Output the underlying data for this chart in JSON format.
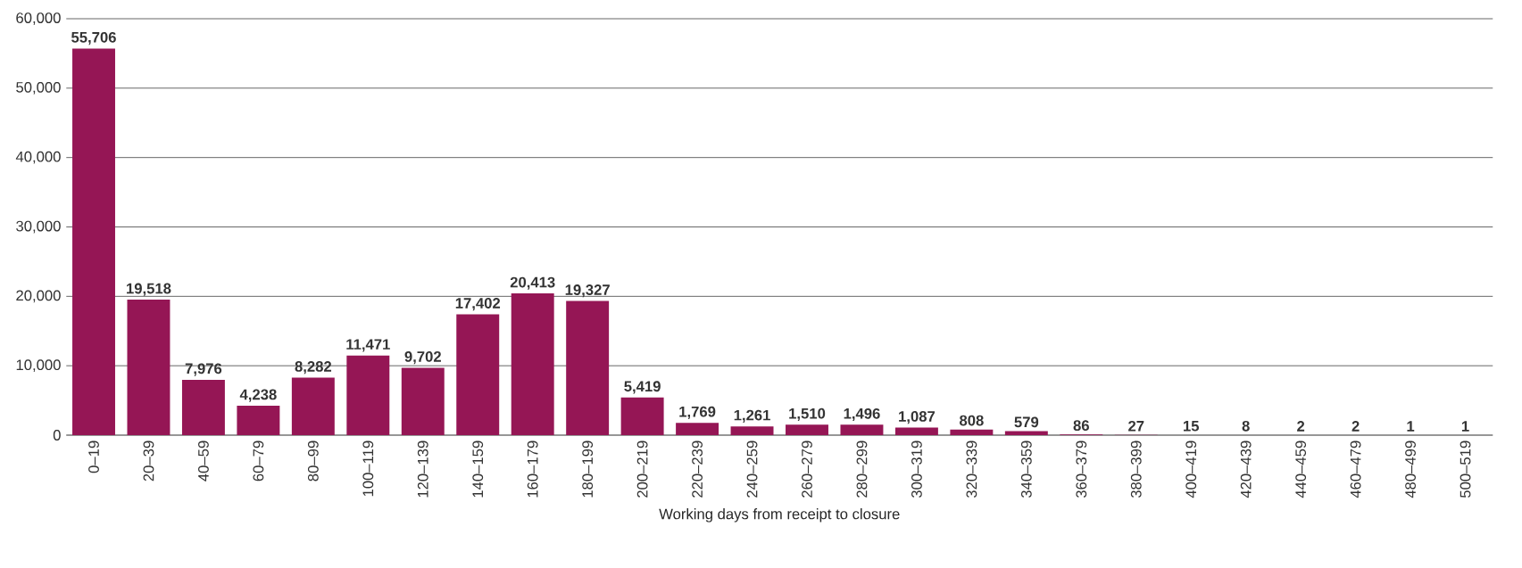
{
  "chart_data": {
    "type": "bar",
    "xlabel": "Working days from receipt to closure",
    "categories": [
      "0–19",
      "20–39",
      "40–59",
      "60–79",
      "80–99",
      "100–119",
      "120–139",
      "140–159",
      "160–179",
      "180–199",
      "200–219",
      "220–239",
      "240–259",
      "260–279",
      "280–299",
      "300–319",
      "320–339",
      "340–359",
      "360–379",
      "380–399",
      "400–419",
      "420–439",
      "440–459",
      "460–479",
      "480–499",
      "500–519"
    ],
    "values": [
      55706,
      19518,
      7976,
      4238,
      8282,
      11471,
      9702,
      17402,
      20413,
      19327,
      5419,
      1769,
      1261,
      1510,
      1496,
      1087,
      808,
      579,
      86,
      27,
      15,
      8,
      2,
      2,
      1,
      1
    ],
    "value_labels": [
      "55,706",
      "19,518",
      "7,976",
      "4,238",
      "8,282",
      "11,471",
      "9,702",
      "17,402",
      "20,413",
      "19,327",
      "5,419",
      "1,769",
      "1,261",
      "1,510",
      "1,496",
      "1,087",
      "808",
      "579",
      "86",
      "27",
      "15",
      "8",
      "2",
      "2",
      "1",
      "1"
    ],
    "color": "#951655",
    "ylim": [
      0,
      60000
    ],
    "yticks": [
      {
        "value": 0,
        "label": "0"
      },
      {
        "value": 10000,
        "label": "10,000"
      },
      {
        "value": 20000,
        "label": "20,000"
      },
      {
        "value": 30000,
        "label": "30,000"
      },
      {
        "value": 40000,
        "label": "40,000"
      },
      {
        "value": 50000,
        "label": "50,000"
      },
      {
        "value": 60000,
        "label": "60,000"
      }
    ],
    "grid": "y"
  }
}
